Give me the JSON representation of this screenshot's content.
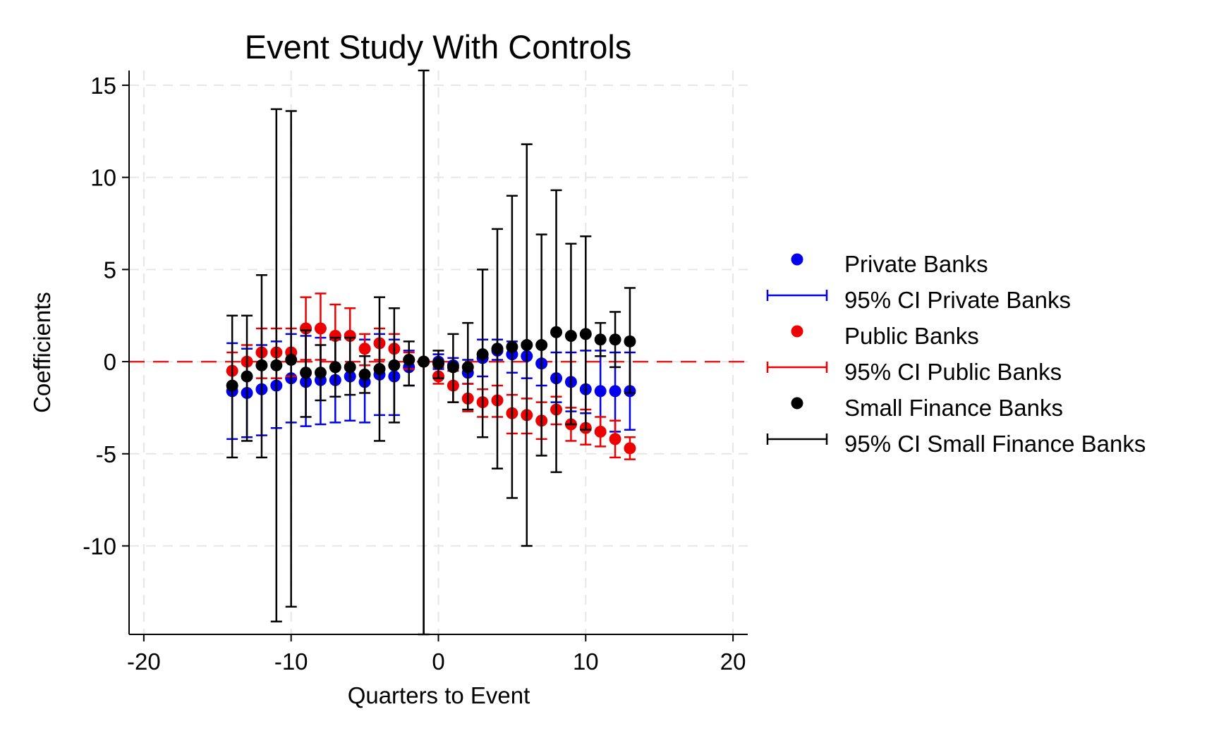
{
  "chart_data": {
    "type": "scatter",
    "title": "Event Study With Controls",
    "xlabel": "Quarters to Event",
    "ylabel": "Coefficients",
    "xlim": [
      -21,
      21
    ],
    "ylim": [
      -14.8,
      15.8
    ],
    "xticks": [
      {
        "value": -20,
        "label": "-20"
      },
      {
        "value": -10,
        "label": "-10"
      },
      {
        "value": 0,
        "label": "0"
      },
      {
        "value": 10,
        "label": "10"
      },
      {
        "value": 20,
        "label": "20"
      }
    ],
    "yticks": [
      {
        "value": 15,
        "label": "15"
      },
      {
        "value": 10,
        "label": "10"
      },
      {
        "value": 5,
        "label": "5"
      },
      {
        "value": 0,
        "label": "0"
      },
      {
        "value": -5,
        "label": "-5"
      },
      {
        "value": -10,
        "label": "-10"
      }
    ],
    "grid": true,
    "reference_lines": {
      "horizontal_zero": {
        "y": 0,
        "color": "#e31a1c",
        "style": "dashed"
      },
      "vertical": {
        "x": -1,
        "color": "#000000",
        "style": "solid"
      }
    },
    "legend_position": "right",
    "legend": [
      {
        "type": "marker",
        "label": "Private Banks",
        "color": "#0000ee"
      },
      {
        "type": "ci",
        "label": "95% CI Private Banks",
        "color": "#0000ee"
      },
      {
        "type": "marker",
        "label": "Public Banks",
        "color": "#ee0000"
      },
      {
        "type": "ci",
        "label": "95% CI Public Banks",
        "color": "#ee0000"
      },
      {
        "type": "marker",
        "label": "Small Finance Banks",
        "color": "#000000"
      },
      {
        "type": "ci",
        "label": "95% CI Small Finance Banks",
        "color": "#000000"
      }
    ],
    "series": [
      {
        "name": "Private Banks",
        "color": "#0000ee",
        "x": [
          -14,
          -13,
          -12,
          -11,
          -10,
          -9,
          -8,
          -7,
          -6,
          -5,
          -4,
          -3,
          -2,
          -1,
          0,
          1,
          2,
          3,
          4,
          5,
          6,
          7,
          8,
          9,
          10,
          11,
          12,
          13
        ],
        "y": [
          -1.6,
          -1.7,
          -1.5,
          -1.3,
          -0.9,
          -1.1,
          -1.0,
          -1.0,
          -0.8,
          -1.1,
          -0.7,
          -0.8,
          -0.3,
          0,
          0,
          -0.2,
          -0.6,
          0.2,
          0.6,
          0.4,
          0.3,
          -0.1,
          -0.9,
          -1.1,
          -1.5,
          -1.6,
          -1.6,
          -1.6
        ],
        "lo": [
          -4.2,
          -4.1,
          -4.0,
          -3.6,
          -3.3,
          -3.5,
          -3.4,
          -3.3,
          -3.2,
          -3.3,
          -2.9,
          -2.9,
          -1.3,
          0,
          -0.4,
          -0.5,
          -1.2,
          -0.8,
          0.1,
          -0.6,
          -0.9,
          -1.3,
          -2.2,
          -2.7,
          -2.8,
          -3.9,
          -3.8,
          -3.7
        ],
        "hi": [
          1.0,
          0.7,
          0.9,
          1.1,
          1.5,
          1.4,
          1.3,
          1.2,
          1.5,
          1.2,
          1.5,
          1.2,
          0.6,
          0,
          0.4,
          0.2,
          0.1,
          1.2,
          1.2,
          1.1,
          1.0,
          0.9,
          0.5,
          0.5,
          0.6,
          0.6,
          0.5,
          0.5
        ]
      },
      {
        "name": "Public Banks",
        "color": "#ee0000",
        "x": [
          -14,
          -13,
          -12,
          -11,
          -10,
          -9,
          -8,
          -7,
          -6,
          -5,
          -4,
          -3,
          -2,
          -1,
          0,
          1,
          2,
          3,
          4,
          5,
          6,
          7,
          8,
          9,
          10,
          11,
          12,
          13
        ],
        "y": [
          -0.5,
          0,
          0.5,
          0.5,
          0.5,
          1.8,
          1.8,
          1.4,
          1.4,
          0.7,
          1.0,
          0.7,
          0.1,
          0,
          -0.8,
          -1.3,
          -2.0,
          -2.2,
          -2.1,
          -2.8,
          -2.9,
          -3.2,
          -2.6,
          -3.4,
          -3.6,
          -3.8,
          -4.2,
          -4.7
        ],
        "lo": [
          -1.4,
          -0.9,
          -0.9,
          -0.9,
          -0.8,
          0.1,
          0.1,
          -0.3,
          -0.2,
          -0.2,
          0.1,
          -0.2,
          -0.4,
          0,
          -1.2,
          -2.2,
          -2.7,
          -3.0,
          -3.0,
          -3.9,
          -3.9,
          -4.2,
          -3.4,
          -4.3,
          -4.5,
          -4.6,
          -5.2,
          -5.3
        ],
        "hi": [
          0.5,
          0.9,
          1.8,
          1.8,
          1.8,
          3.5,
          3.7,
          3.1,
          2.9,
          1.5,
          1.8,
          1.5,
          0.5,
          0,
          -0.3,
          -0.5,
          -1.2,
          -1.5,
          -1.3,
          -1.8,
          -2.0,
          -2.2,
          -1.9,
          -2.5,
          -2.6,
          -3.0,
          -3.2,
          -4.1
        ]
      },
      {
        "name": "Small Finance Banks",
        "color": "#000000",
        "x": [
          -14,
          -13,
          -12,
          -11,
          -10,
          -9,
          -8,
          -7,
          -6,
          -5,
          -4,
          -3,
          -2,
          -1,
          0,
          1,
          2,
          3,
          4,
          5,
          6,
          7,
          8,
          9,
          10,
          11,
          12,
          13
        ],
        "y": [
          -1.3,
          -0.8,
          -0.2,
          -0.2,
          0.1,
          -0.6,
          -0.6,
          -0.3,
          -0.3,
          -0.7,
          -0.4,
          -0.2,
          0.1,
          0,
          -0.1,
          -0.3,
          -0.3,
          0.4,
          0.7,
          0.8,
          0.9,
          0.9,
          1.6,
          1.4,
          1.5,
          1.2,
          1.2,
          1.1
        ],
        "lo": [
          -5.2,
          -4.3,
          -5.2,
          -14.1,
          -13.3,
          -3.0,
          -2.1,
          -1.9,
          -1.8,
          -1.7,
          -4.3,
          -3.3,
          -1.3,
          -14.8,
          -0.9,
          -2.2,
          -2.6,
          -4.1,
          -5.8,
          -7.4,
          -10.0,
          -5.1,
          -6.0,
          -3.4,
          -3.7,
          0.3,
          -0.3,
          -1.7
        ],
        "hi": [
          2.5,
          2.5,
          4.7,
          13.7,
          13.6,
          1.7,
          0.9,
          1.3,
          1.3,
          0.3,
          3.5,
          2.9,
          1.1,
          15.8,
          0.6,
          1.5,
          2.1,
          5.0,
          7.2,
          9.0,
          11.8,
          6.9,
          9.3,
          6.4,
          6.8,
          2.1,
          2.7,
          4.0
        ]
      }
    ]
  }
}
